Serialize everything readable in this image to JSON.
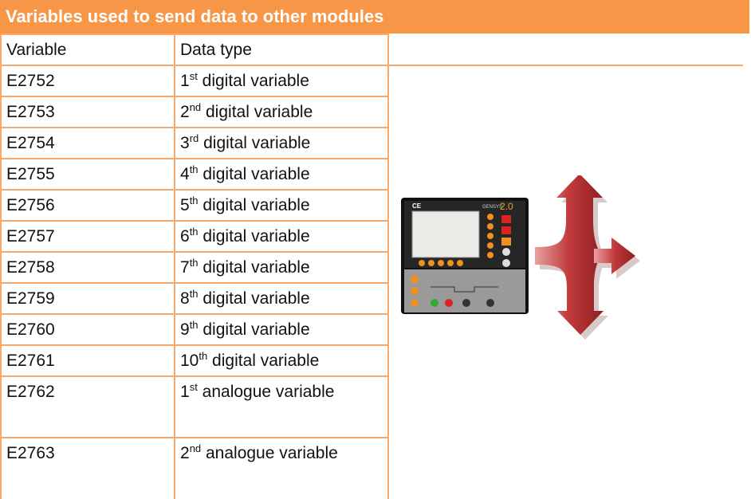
{
  "header": {
    "title": "Variables used to send data to other modules"
  },
  "table": {
    "columns": [
      "Variable",
      "Data type"
    ],
    "rows": [
      {
        "variable": "E2752",
        "ordinal": "1",
        "suffix": "st",
        "label": "digital variable"
      },
      {
        "variable": "E2753",
        "ordinal": "2",
        "suffix": "nd",
        "label": "digital variable"
      },
      {
        "variable": "E2754",
        "ordinal": "3",
        "suffix": "rd",
        "label": "digital variable"
      },
      {
        "variable": "E2755",
        "ordinal": "4",
        "suffix": "th",
        "label": "digital variable"
      },
      {
        "variable": "E2756",
        "ordinal": "5",
        "suffix": "th",
        "label": "digital variable"
      },
      {
        "variable": "E2757",
        "ordinal": "6",
        "suffix": "th",
        "label": "digital variable"
      },
      {
        "variable": "E2758",
        "ordinal": "7",
        "suffix": "th",
        "label": "digital variable"
      },
      {
        "variable": "E2759",
        "ordinal": "8",
        "suffix": "th",
        "label": "digital variable"
      },
      {
        "variable": "E2760",
        "ordinal": "9",
        "suffix": "th",
        "label": "digital variable"
      },
      {
        "variable": "E2761",
        "ordinal": "10",
        "suffix": "th",
        "label": "digital variable"
      },
      {
        "variable": "E2762",
        "ordinal": "1",
        "suffix": "st",
        "label": "analogue variable"
      },
      {
        "variable": "E2763",
        "ordinal": "2",
        "suffix": "nd",
        "label": "analogue variable"
      }
    ]
  },
  "device": {
    "brand": "CE",
    "model": "GENSYS",
    "version": "2.0"
  }
}
